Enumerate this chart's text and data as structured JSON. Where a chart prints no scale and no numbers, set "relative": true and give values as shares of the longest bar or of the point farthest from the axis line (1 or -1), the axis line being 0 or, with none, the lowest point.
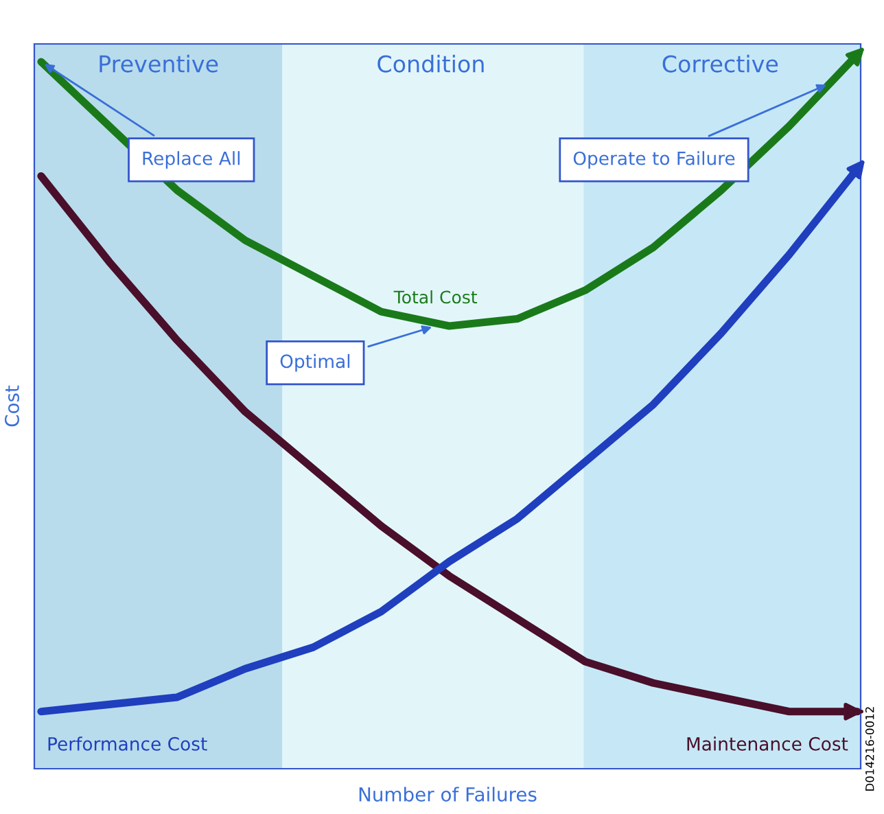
{
  "chart_data": {
    "type": "line",
    "relative": true,
    "xlabel": "Number of Failures",
    "ylabel": "Cost",
    "categories": [
      null,
      null,
      null,
      null,
      null,
      null,
      null,
      null,
      null,
      null,
      null,
      null,
      null
    ],
    "series": [
      {
        "name": "Total Cost",
        "color": "#1a7a1a",
        "values": [
          0.99,
          0.9,
          0.81,
          0.74,
          0.69,
          0.64,
          0.62,
          0.63,
          0.67,
          0.73,
          0.81,
          0.9,
          1.0
        ]
      },
      {
        "name": "Maintenance Cost",
        "color": "#4a0f2a",
        "values": [
          0.83,
          0.71,
          0.6,
          0.5,
          0.42,
          0.34,
          0.27,
          0.21,
          0.15,
          0.12,
          0.1,
          0.08,
          0.08
        ]
      },
      {
        "name": "Performance Cost",
        "color": "#1f3fbf",
        "values": [
          0.08,
          0.09,
          0.1,
          0.14,
          0.17,
          0.22,
          0.29,
          0.35,
          0.43,
          0.51,
          0.61,
          0.72,
          0.84
        ]
      }
    ],
    "annotations": [
      "Preventive",
      "Condition",
      "Corrective",
      "Replace All",
      "Operate to Failure",
      "Optimal",
      "D014216-0012"
    ]
  }
}
